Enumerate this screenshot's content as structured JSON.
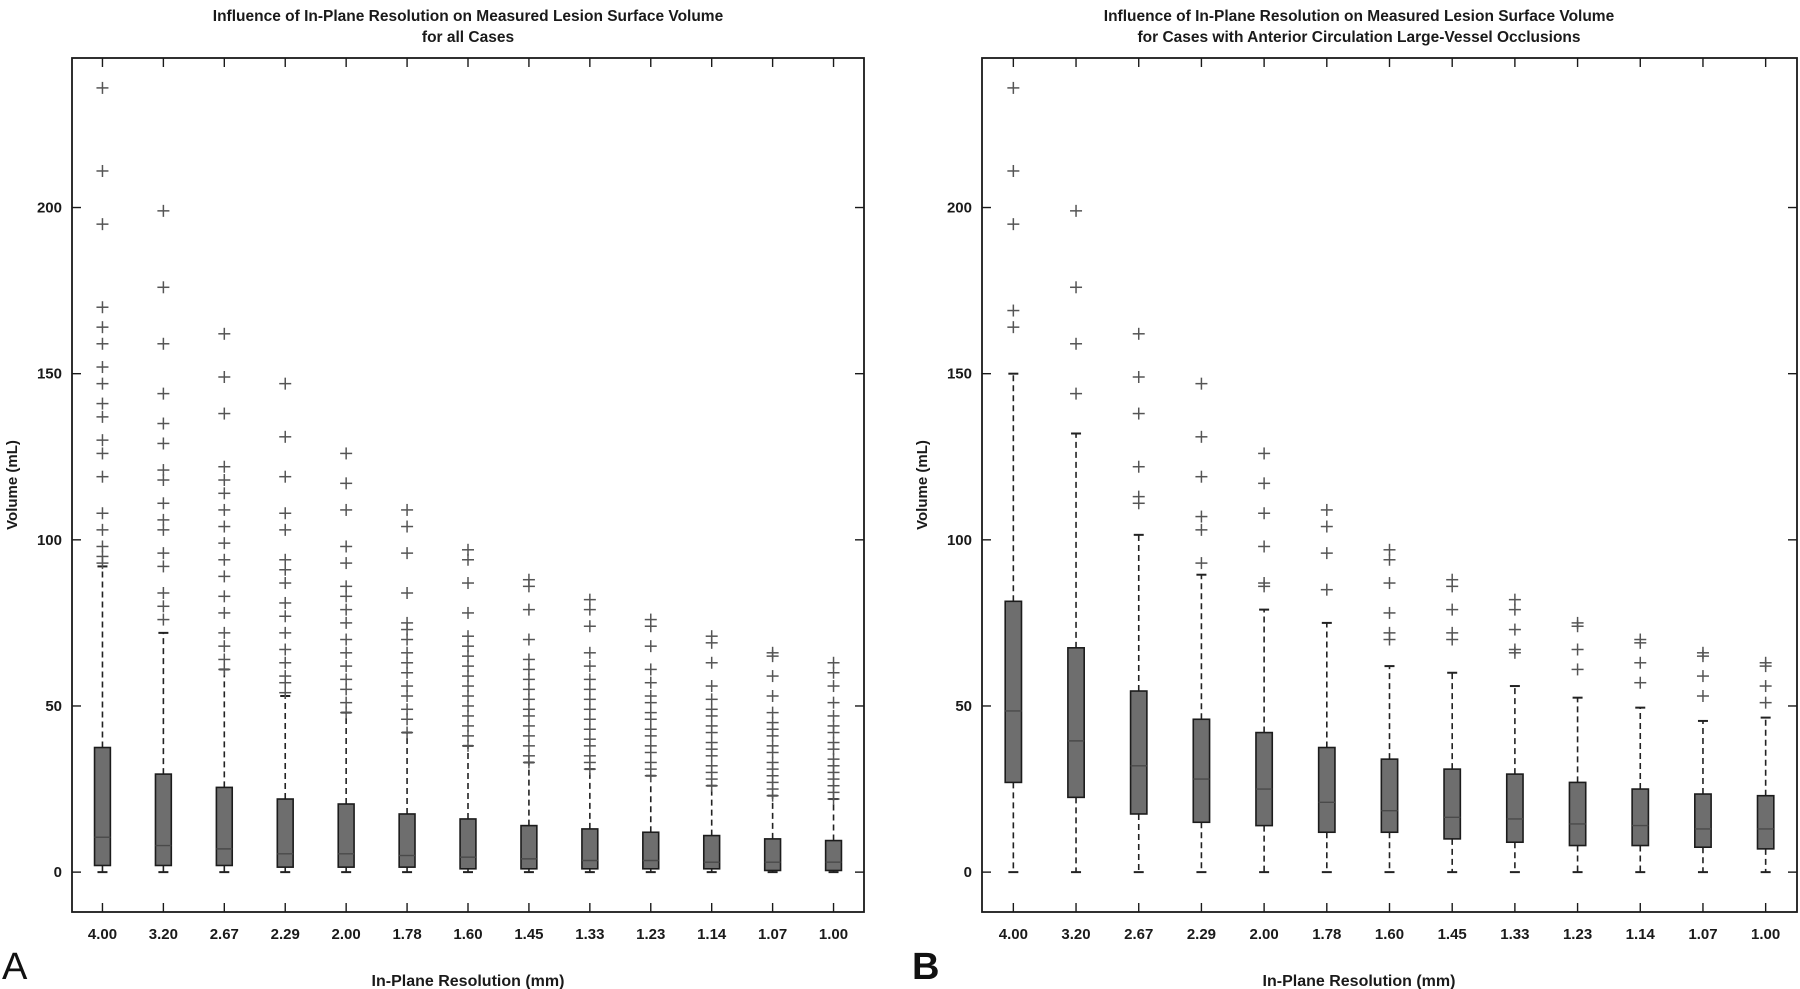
{
  "figure": {
    "panel_labels": [
      "A",
      "B"
    ],
    "colors": {
      "box_fill": "#6e6e6e",
      "box_edge": "#1c1c1c",
      "median": "#4a4a4a",
      "whisker": "#222222",
      "outlier": "#555555",
      "axes": "#1a1a1a",
      "text": "#1a1a1a"
    }
  },
  "chart_data": [
    {
      "type": "box",
      "title": "Influence of In-Plane Resolution on Measured Lesion Surface Volume",
      "subtitle": "for all Cases",
      "xlabel": "In-Plane Resolution (mm)",
      "ylabel": "Volume (mL)",
      "ylim": [
        -12,
        245
      ],
      "yticks": [
        0,
        50,
        100,
        150,
        200
      ],
      "categories": [
        "4.00",
        "3.20",
        "2.67",
        "2.29",
        "2.00",
        "1.78",
        "1.60",
        "1.45",
        "1.33",
        "1.23",
        "1.14",
        "1.07",
        "1.00"
      ],
      "boxes": [
        {
          "low": 0,
          "q1": 2,
          "median": 10.5,
          "q3": 37.5,
          "high": 92,
          "outliers": [
            93,
            95,
            98,
            103,
            108,
            119,
            126,
            130,
            137,
            141,
            147,
            152,
            159,
            164,
            170,
            195,
            211,
            236
          ]
        },
        {
          "low": 0,
          "q1": 2,
          "median": 8,
          "q3": 29.5,
          "high": 72,
          "outliers": [
            76,
            80,
            84,
            92,
            96,
            103,
            106,
            111,
            118,
            121,
            129,
            135,
            144,
            159,
            176,
            199
          ]
        },
        {
          "low": 0,
          "q1": 2,
          "median": 7,
          "q3": 25.5,
          "high": 61,
          "outliers": [
            61,
            64,
            68,
            72,
            78,
            83,
            89,
            94,
            99,
            104,
            109,
            114,
            118,
            122,
            138,
            149,
            162
          ]
        },
        {
          "low": 0,
          "q1": 1.5,
          "median": 5.5,
          "q3": 22,
          "high": 53,
          "outliers": [
            54,
            57,
            59,
            63,
            67,
            72,
            77,
            81,
            87,
            91,
            94,
            103,
            108,
            119,
            131,
            147
          ]
        },
        {
          "low": 0,
          "q1": 1.5,
          "median": 5.5,
          "q3": 20.5,
          "high": 48,
          "outliers": [
            48,
            51,
            55,
            58,
            62,
            66,
            70,
            75,
            79,
            83,
            86,
            93,
            98,
            109,
            117,
            126
          ]
        },
        {
          "low": 0,
          "q1": 1.5,
          "median": 5,
          "q3": 17.5,
          "high": 42,
          "outliers": [
            42,
            46,
            49,
            53,
            56,
            60,
            63,
            66,
            70,
            73,
            75,
            84,
            96,
            104,
            109
          ]
        },
        {
          "low": 0,
          "q1": 1,
          "median": 4.5,
          "q3": 16,
          "high": 38,
          "outliers": [
            38,
            41,
            44,
            47,
            50,
            53,
            56,
            59,
            62,
            65,
            68,
            71,
            78,
            87,
            94,
            97
          ]
        },
        {
          "low": 0,
          "q1": 1,
          "median": 4,
          "q3": 14,
          "high": 33,
          "outliers": [
            33,
            35,
            38,
            41,
            44,
            47,
            49,
            52,
            55,
            58,
            61,
            64,
            70,
            79,
            86,
            88
          ]
        },
        {
          "low": 0,
          "q1": 1,
          "median": 3.5,
          "q3": 13,
          "high": 31,
          "outliers": [
            31,
            33,
            35,
            38,
            40,
            43,
            46,
            49,
            52,
            55,
            58,
            62,
            66,
            74,
            79,
            82
          ]
        },
        {
          "low": 0,
          "q1": 1,
          "median": 3.5,
          "q3": 12,
          "high": 29,
          "outliers": [
            29,
            31,
            33,
            36,
            38,
            41,
            43,
            46,
            48,
            51,
            53,
            57,
            61,
            68,
            74,
            76
          ]
        },
        {
          "low": 0,
          "q1": 1,
          "median": 3,
          "q3": 11,
          "high": 26,
          "outliers": [
            26,
            28,
            30,
            32,
            35,
            37,
            39,
            42,
            44,
            47,
            49,
            52,
            56,
            63,
            69,
            71
          ]
        },
        {
          "low": 0,
          "q1": 0.5,
          "median": 3,
          "q3": 10,
          "high": 23,
          "outliers": [
            23,
            25,
            27,
            29,
            31,
            33,
            36,
            38,
            41,
            43,
            45,
            48,
            53,
            59,
            65,
            66
          ]
        },
        {
          "low": 0,
          "q1": 0.5,
          "median": 3,
          "q3": 9.5,
          "high": 22,
          "outliers": [
            22,
            24,
            26,
            28,
            30,
            32,
            34,
            37,
            39,
            42,
            44,
            47,
            51,
            56,
            60,
            63
          ]
        }
      ]
    },
    {
      "type": "box",
      "title": "Influence of In-Plane Resolution on Measured Lesion Surface Volume",
      "subtitle": "for Cases with Anterior Circulation Large-Vessel Occlusions",
      "xlabel": "In-Plane Resolution (mm)",
      "ylabel": "Volume (mL)",
      "ylim": [
        -12,
        245
      ],
      "yticks": [
        0,
        50,
        100,
        150,
        200
      ],
      "categories": [
        "4.00",
        "3.20",
        "2.67",
        "2.29",
        "2.00",
        "1.78",
        "1.60",
        "1.45",
        "1.33",
        "1.23",
        "1.14",
        "1.07",
        "1.00"
      ],
      "boxes": [
        {
          "low": 0,
          "q1": 27,
          "median": 48.5,
          "q3": 81.5,
          "high": 150,
          "outliers": [
            164,
            169,
            195,
            211,
            236
          ]
        },
        {
          "low": 0,
          "q1": 22.5,
          "median": 39.5,
          "q3": 67.5,
          "high": 132,
          "outliers": [
            144,
            159,
            176,
            199
          ]
        },
        {
          "low": 0,
          "q1": 17.5,
          "median": 32,
          "q3": 54.5,
          "high": 101.5,
          "outliers": [
            111,
            113,
            122,
            138,
            149,
            162
          ]
        },
        {
          "low": 0,
          "q1": 15,
          "median": 28,
          "q3": 46,
          "high": 89.5,
          "outliers": [
            93,
            103,
            107,
            119,
            131,
            147
          ]
        },
        {
          "low": 0,
          "q1": 14,
          "median": 25,
          "q3": 42,
          "high": 79,
          "outliers": [
            86,
            87,
            98,
            108,
            117,
            126
          ]
        },
        {
          "low": 0,
          "q1": 12,
          "median": 21,
          "q3": 37.5,
          "high": 75,
          "outliers": [
            85,
            96,
            104,
            109
          ]
        },
        {
          "low": 0,
          "q1": 12,
          "median": 18.5,
          "q3": 34,
          "high": 62,
          "outliers": [
            70,
            72,
            78,
            87,
            94,
            97
          ]
        },
        {
          "low": 0,
          "q1": 10,
          "median": 16.5,
          "q3": 31,
          "high": 60,
          "outliers": [
            70,
            72,
            79,
            86,
            88
          ]
        },
        {
          "low": 0,
          "q1": 9,
          "median": 16,
          "q3": 29.5,
          "high": 56,
          "outliers": [
            66,
            67,
            73,
            79,
            82
          ]
        },
        {
          "low": 0,
          "q1": 8,
          "median": 14.5,
          "q3": 27,
          "high": 52.5,
          "outliers": [
            61,
            67,
            74,
            75
          ]
        },
        {
          "low": 0,
          "q1": 8,
          "median": 14,
          "q3": 25,
          "high": 49.5,
          "outliers": [
            57,
            63,
            69,
            70
          ]
        },
        {
          "low": 0,
          "q1": 7.5,
          "median": 13,
          "q3": 23.5,
          "high": 45.5,
          "outliers": [
            53,
            59,
            65,
            66
          ]
        },
        {
          "low": 0,
          "q1": 7,
          "median": 13,
          "q3": 23,
          "high": 46.5,
          "outliers": [
            51,
            56,
            62,
            63
          ]
        }
      ]
    }
  ]
}
